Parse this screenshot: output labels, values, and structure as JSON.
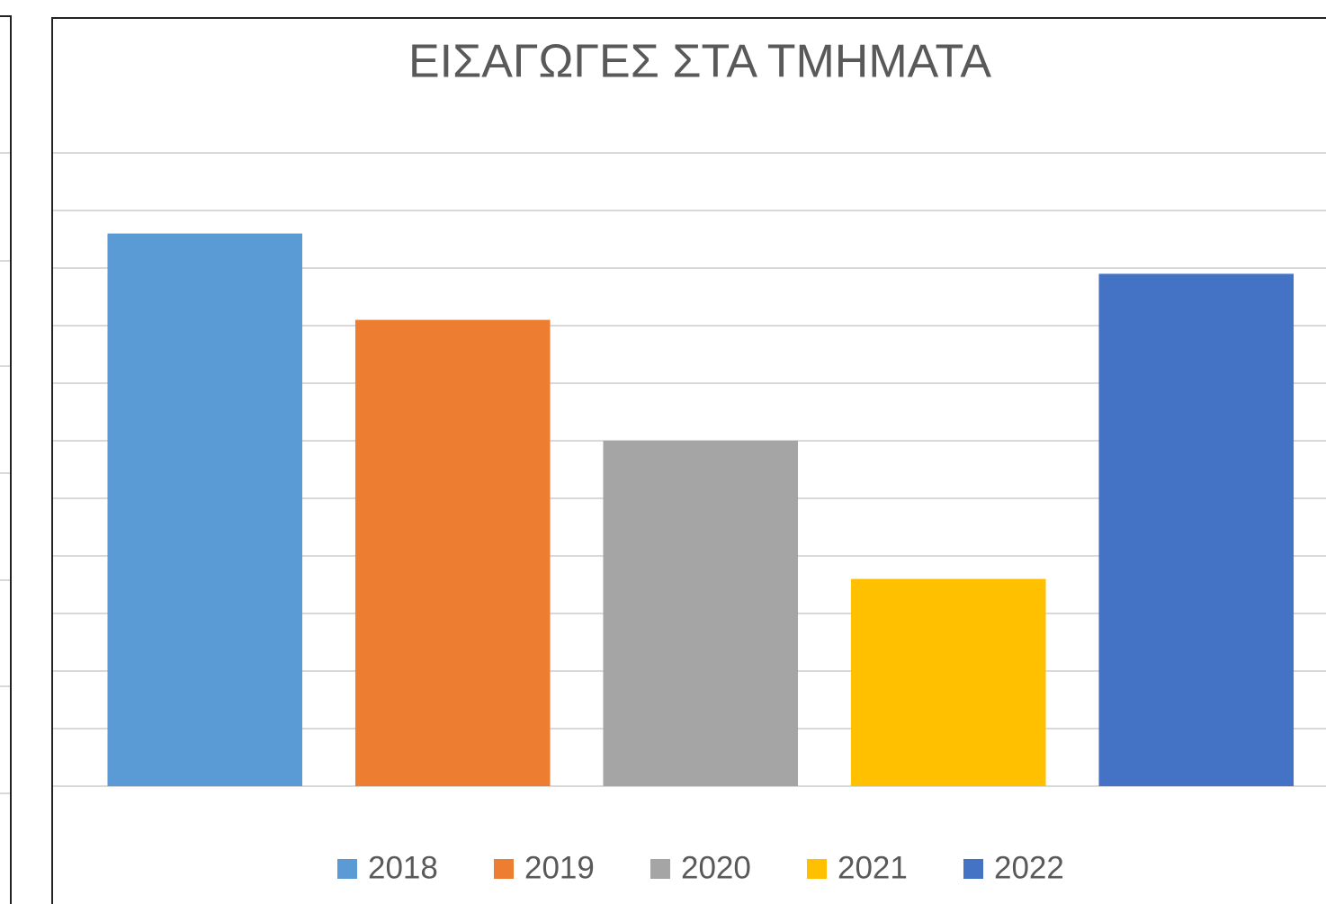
{
  "chart_data": {
    "type": "bar",
    "title": "ΕΙΣΑΓΩΓΕΣ ΣΤΑ ΤΜΗΜΑΤΑ",
    "categories": [
      "2018",
      "2019",
      "2020",
      "2021",
      "2022"
    ],
    "values": [
      9.6,
      8.1,
      6.0,
      3.6,
      8.9
    ],
    "colors": [
      "#5b9bd5",
      "#ed7d31",
      "#a5a5a5",
      "#ffc000",
      "#4472c4"
    ],
    "ylim": [
      0,
      11
    ],
    "yticks": [
      0,
      1,
      2,
      3,
      4,
      5,
      6,
      7,
      8,
      9,
      10,
      11
    ],
    "grid": true,
    "legend": "bottom"
  }
}
